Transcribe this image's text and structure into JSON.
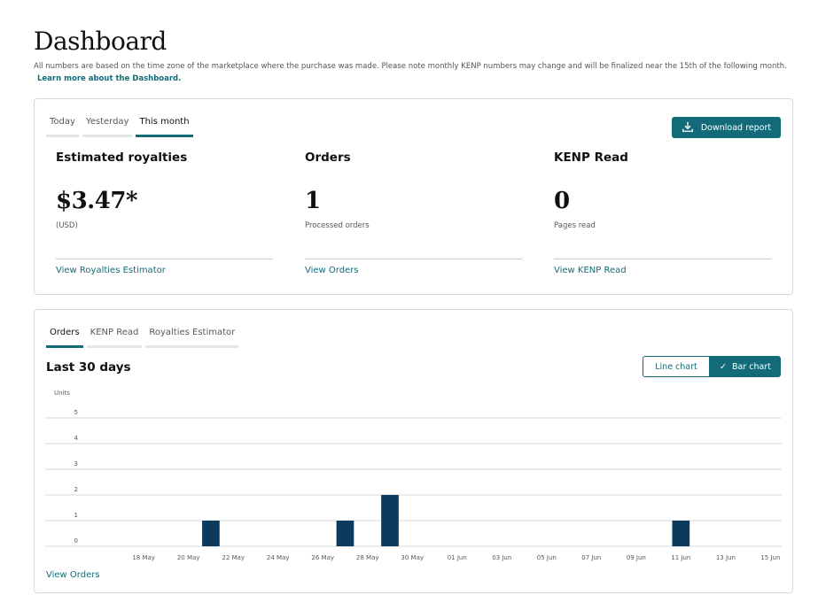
{
  "header": {
    "title": "Dashboard",
    "notice": "All numbers are based on the time zone of the marketplace where the purchase was made. Please note monthly KENP numbers may change and will be finalized near the 15th of the following month.",
    "learn_more": "Learn more about the Dashboard."
  },
  "summary": {
    "tabs": [
      "Today",
      "Yesterday",
      "This month"
    ],
    "active_tab": "This month",
    "download_label": "Download report",
    "metrics": [
      {
        "title": "Estimated royalties",
        "value": "$3.47*",
        "sub": "(USD)",
        "link": "View Royalties Estimator"
      },
      {
        "title": "Orders",
        "value": "1",
        "sub": "Processed orders",
        "link": "View Orders"
      },
      {
        "title": "KENP Read",
        "value": "0",
        "sub": "Pages read",
        "link": "View KENP Read"
      }
    ]
  },
  "chart_panel": {
    "tabs": [
      "Orders",
      "KENP Read",
      "Royalties Estimator"
    ],
    "active_tab": "Orders",
    "title": "Last 30 days",
    "toggle": {
      "line": "Line chart",
      "bar": "Bar chart",
      "selected": "Bar chart"
    },
    "view_link": "View Orders"
  },
  "colors": {
    "accent": "#136b79",
    "bar": "#0b3a5c",
    "grid": "#d5d9d9"
  },
  "chart_data": {
    "type": "bar",
    "ylabel": "Units",
    "ylim": [
      0,
      5
    ],
    "yticks": [
      0,
      1,
      2,
      3,
      4,
      5
    ],
    "grid": true,
    "x": [
      "16 May",
      "17 May",
      "18 May",
      "19 May",
      "20 May",
      "21 May",
      "22 May",
      "23 May",
      "24 May",
      "25 May",
      "26 May",
      "27 May",
      "28 May",
      "29 May",
      "30 May",
      "31 May",
      "01 Jun",
      "02 Jun",
      "03 Jun",
      "04 Jun",
      "05 Jun",
      "06 Jun",
      "07 Jun",
      "08 Jun",
      "09 Jun",
      "10 Jun",
      "11 Jun",
      "12 Jun",
      "13 Jun",
      "14 Jun",
      "15 Jun"
    ],
    "tick_labels": [
      "18 May",
      "20 May",
      "22 May",
      "24 May",
      "26 May",
      "28 May",
      "30 May",
      "01 Jun",
      "03 Jun",
      "05 Jun",
      "07 Jun",
      "09 Jun",
      "11 Jun",
      "13 Jun",
      "15 Jun"
    ],
    "values": [
      0,
      0,
      0,
      0,
      0,
      1,
      0,
      0,
      0,
      0,
      0,
      1,
      0,
      2,
      0,
      0,
      0,
      0,
      0,
      0,
      0,
      0,
      0,
      0,
      0,
      0,
      1,
      0,
      0,
      0,
      0
    ]
  }
}
